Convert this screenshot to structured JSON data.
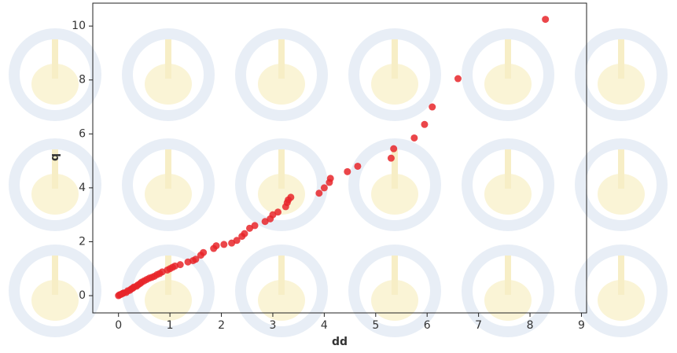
{
  "chart_data": {
    "type": "scatter",
    "x_label": "dd",
    "y_label": "q",
    "color": "#e8262a",
    "x": [
      0,
      0.02,
      0.05,
      0.08,
      0.1,
      0.15,
      0.18,
      0.22,
      0.25,
      0.28,
      0.3,
      0.35,
      0.38,
      0.42,
      0.45,
      0.5,
      0.55,
      0.6,
      0.65,
      0.7,
      0.75,
      0.8,
      0.85,
      0.95,
      1.0,
      1.05,
      1.1,
      1.2,
      1.35,
      1.45,
      1.5,
      1.6,
      1.65,
      1.85,
      1.9,
      2.05,
      2.2,
      2.3,
      2.4,
      2.45,
      2.55,
      2.65,
      2.85,
      2.95,
      3.0,
      3.1,
      3.25,
      3.28,
      3.3,
      3.35,
      3.9,
      4.0,
      4.1,
      4.12,
      4.45,
      4.65,
      5.3,
      5.35,
      5.75,
      5.95,
      6.1,
      6.6,
      8.3
    ],
    "values": [
      0,
      0.03,
      0.05,
      0.08,
      0.1,
      0.12,
      0.18,
      0.2,
      0.25,
      0.28,
      0.32,
      0.35,
      0.4,
      0.45,
      0.5,
      0.55,
      0.6,
      0.65,
      0.68,
      0.72,
      0.78,
      0.82,
      0.88,
      0.95,
      1.0,
      1.05,
      1.1,
      1.15,
      1.25,
      1.3,
      1.35,
      1.5,
      1.6,
      1.75,
      1.85,
      1.9,
      1.95,
      2.05,
      2.2,
      2.3,
      2.5,
      2.6,
      2.75,
      2.85,
      3.0,
      3.1,
      3.3,
      3.45,
      3.55,
      3.65,
      3.8,
      4.0,
      4.2,
      4.35,
      4.6,
      4.8,
      5.1,
      5.45,
      5.85,
      6.35,
      7.0,
      8.05,
      10.25
    ],
    "xlim": [
      -0.5,
      9.1
    ],
    "ylim": [
      -0.64,
      10.85
    ],
    "xticks": [
      0,
      1,
      2,
      3,
      4,
      5,
      6,
      7,
      8,
      9
    ],
    "yticks": [
      0,
      2,
      4,
      6,
      8,
      10
    ]
  }
}
